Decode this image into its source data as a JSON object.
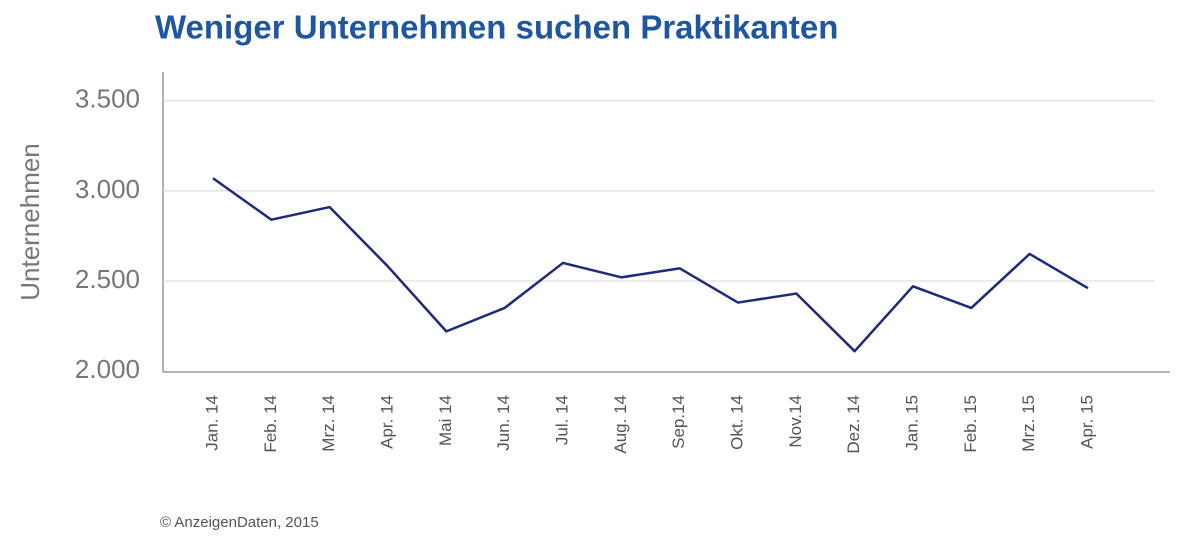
{
  "chart_data": {
    "type": "line",
    "title": "Weniger Unternehmen suchen Praktikanten",
    "y_label": "Unternehmen",
    "source": "© AnzeigenDaten, 2015",
    "categories": [
      "Jan. 14",
      "Feb. 14",
      "Mrz. 14",
      "Apr. 14",
      "Mai 14",
      "Jun. 14",
      "Jul. 14",
      "Aug. 14",
      "Sep.14",
      "Okt. 14",
      "Nov.14",
      "Dez. 14",
      "Jan. 15",
      "Feb. 15",
      "Mrz. 15",
      "Apr. 15"
    ],
    "series": [
      {
        "color": "#1f2a7a",
        "values": [
          3070,
          2840,
          2910,
          2580,
          2220,
          2350,
          2600,
          2520,
          2570,
          2380,
          2430,
          2110,
          2470,
          2350,
          2650,
          2460
        ]
      }
    ],
    "ylim": [
      2000,
      3660
    ],
    "yticks": [
      {
        "value": 2000,
        "label": "2.000"
      },
      {
        "value": 2500,
        "label": "2.500"
      },
      {
        "value": 3000,
        "label": "3.000"
      },
      {
        "value": 3500,
        "label": "3.500"
      }
    ],
    "grid": true
  }
}
